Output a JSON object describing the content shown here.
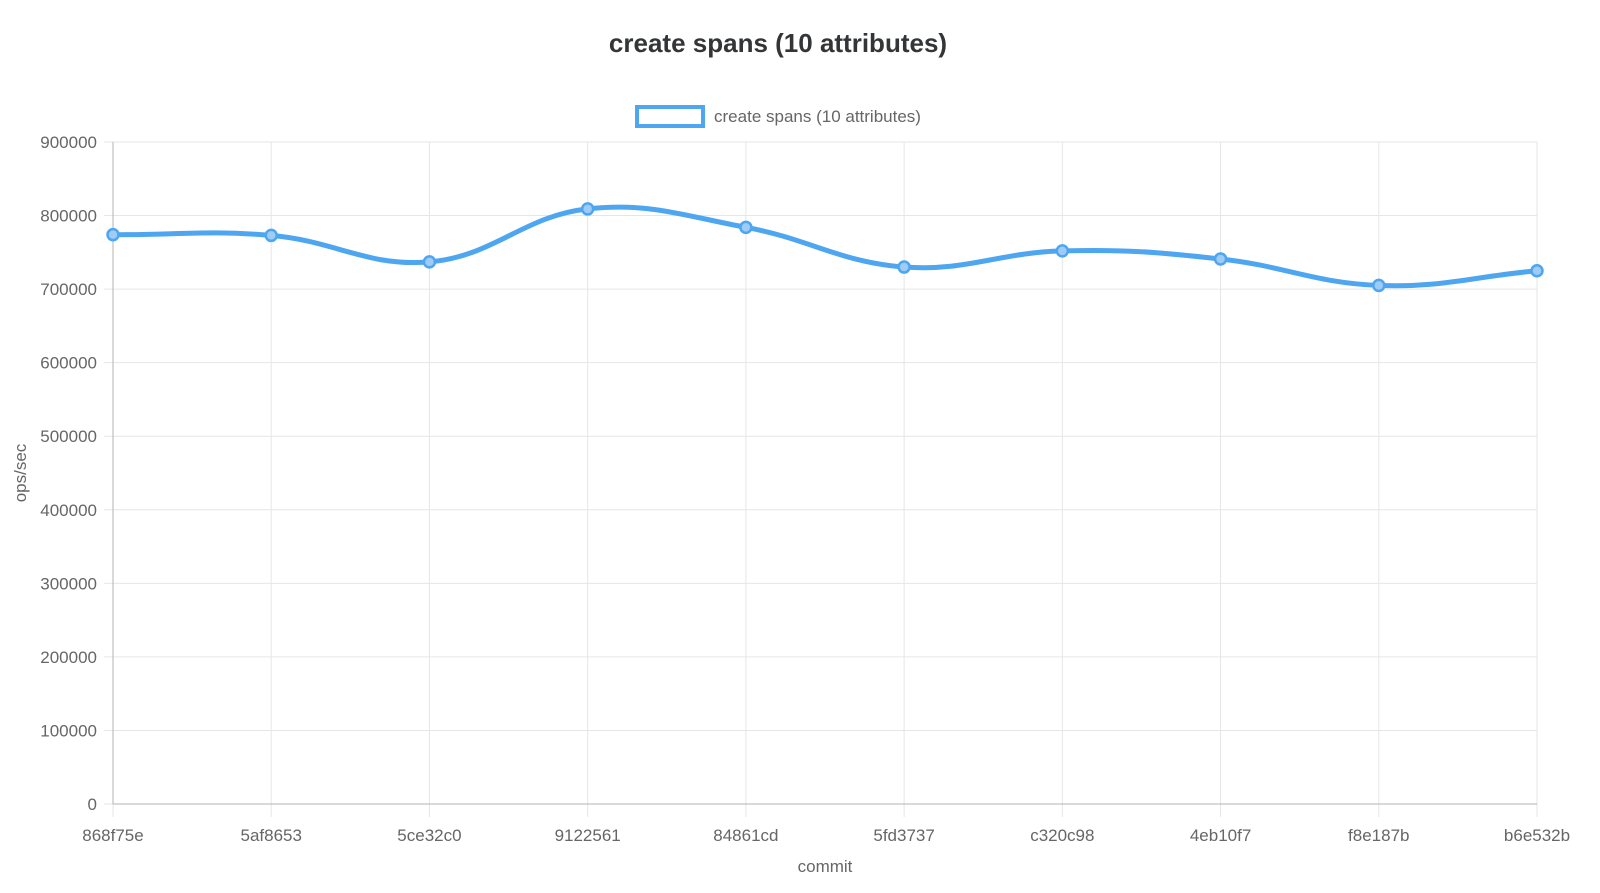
{
  "page": {
    "background": "#ffffff"
  },
  "chart_data": {
    "type": "line",
    "title": "create spans (10 attributes)",
    "xlabel": "commit",
    "ylabel": "ops/sec",
    "categories": [
      "868f75e",
      "5af8653",
      "5ce32c0",
      "9122561",
      "84861cd",
      "5fd3737",
      "c320c98",
      "4eb10f7",
      "f8e187b",
      "b6e532b"
    ],
    "series": [
      {
        "name": "create spans (10 attributes)",
        "values": [
          774000,
          773000,
          737000,
          809000,
          784000,
          730000,
          752000,
          741000,
          705000,
          725000
        ]
      }
    ],
    "ylim": [
      0,
      900000
    ],
    "ytick_step": 100000,
    "ytick_labels": [
      "0",
      "100000",
      "200000",
      "300000",
      "400000",
      "500000",
      "600000",
      "700000",
      "800000",
      "900000"
    ],
    "grid": true,
    "legend_position": "top",
    "line_smoothing": 0.4,
    "colors": {
      "line": "#4ea6f0",
      "point_fill": "#9fccf6",
      "grid": "#e6e6e6",
      "axis": "#b3b3b3",
      "title_text": "#333537",
      "tick_text": "#666666"
    }
  }
}
